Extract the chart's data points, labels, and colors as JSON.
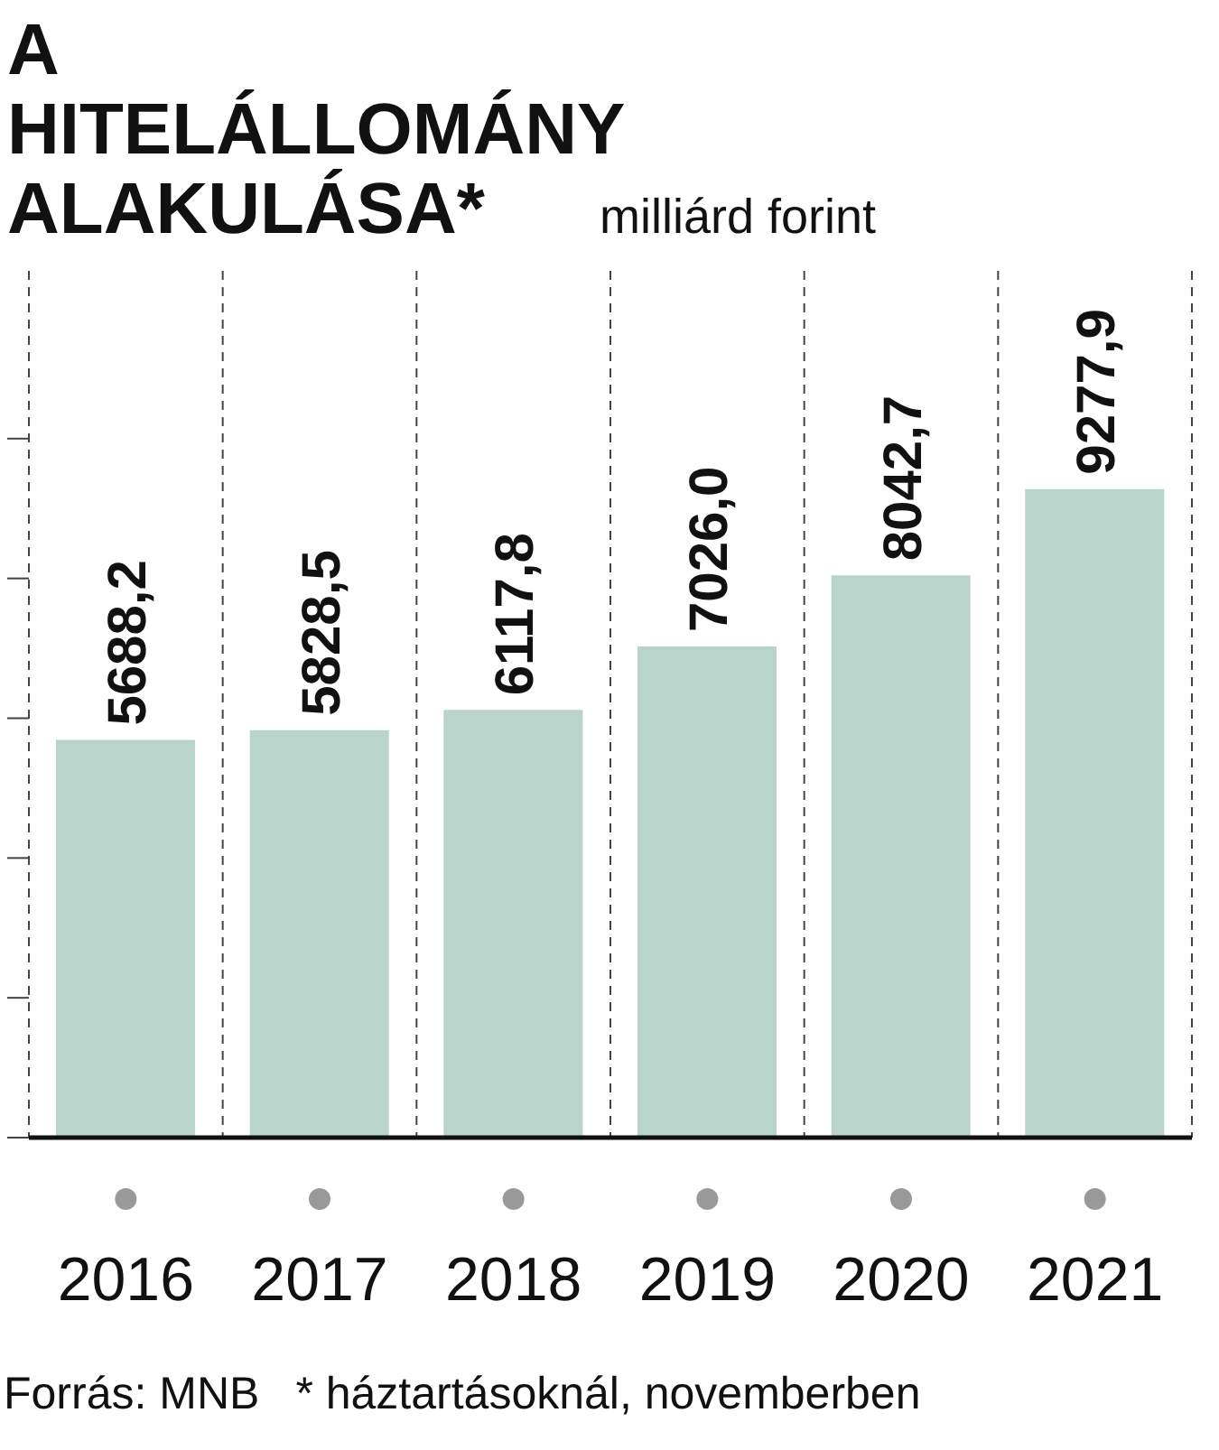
{
  "chart_data": {
    "type": "bar",
    "title": "A HITELÁLLOMÁNY ALAKULÁSA*",
    "subtitle": "milliárd forint",
    "categories": [
      "2016",
      "2017",
      "2018",
      "2019",
      "2020",
      "2021"
    ],
    "values": [
      5688.2,
      5828.5,
      6117.8,
      7026.0,
      8042.7,
      9277.9
    ],
    "value_labels": [
      "5688,2",
      "5828,5",
      "6117,8",
      "7026,0",
      "8042,7",
      "9277,9"
    ],
    "color": "#b8d4cb",
    "ylim": [
      0,
      12400
    ],
    "yticks": [
      {
        "value": 0,
        "label": null
      },
      {
        "value": 2000,
        "label": null
      },
      {
        "value": 4000,
        "label": null
      },
      {
        "value": 6000,
        "label": null
      },
      {
        "value": 8000,
        "label": null
      },
      {
        "value": 10000,
        "label": null
      }
    ],
    "tick_labels": "x",
    "grid": "x",
    "annotations": [
      "Forrás: MNB",
      "* háztartásoknál, novemberben"
    ]
  }
}
